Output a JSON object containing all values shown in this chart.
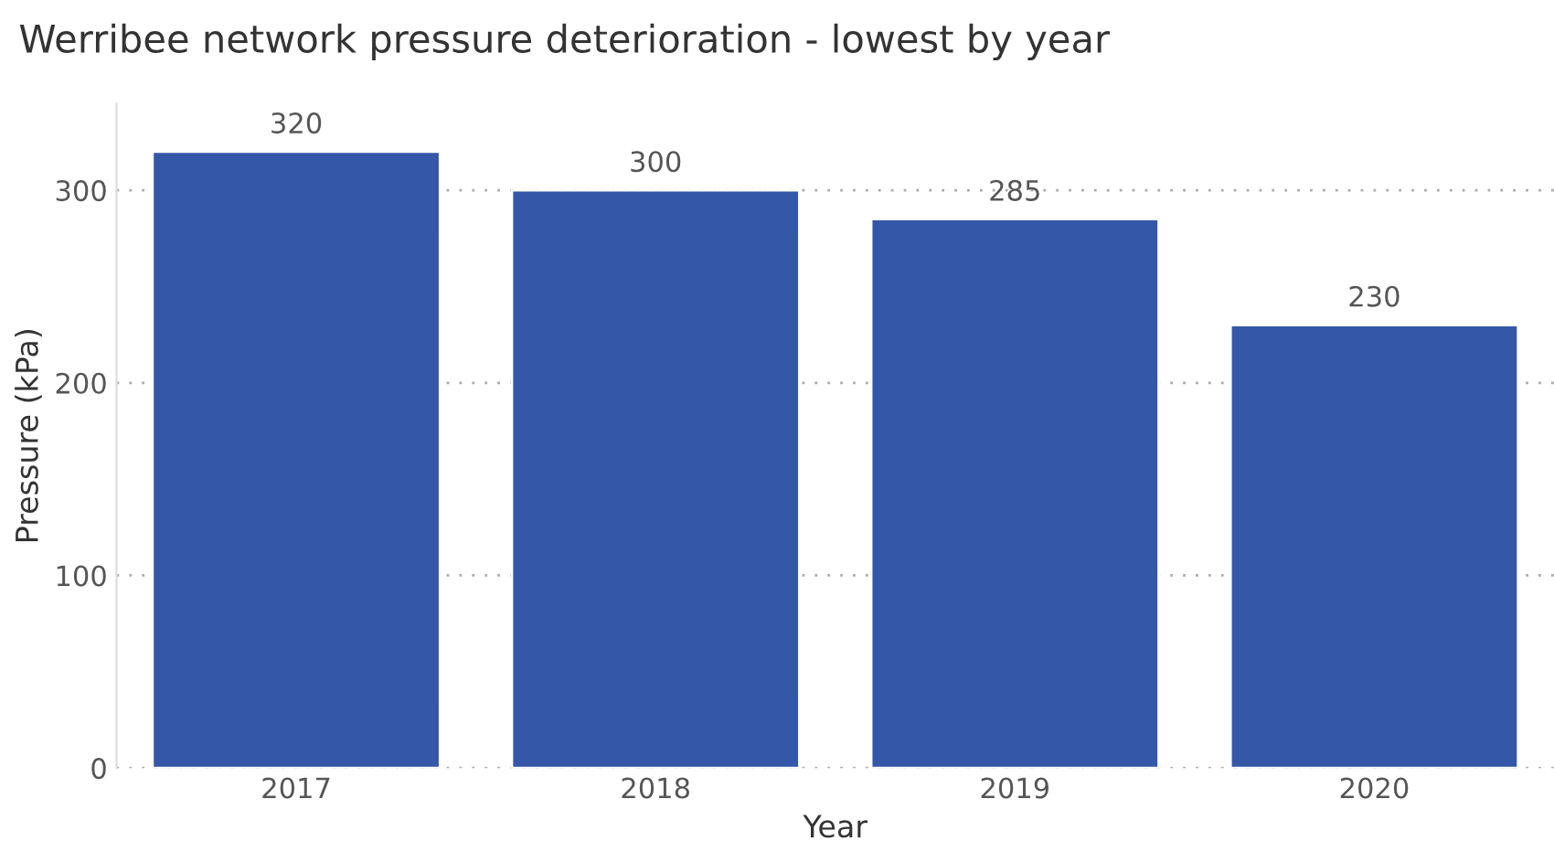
{
  "chart_data": {
    "type": "bar",
    "title": "Werribee network pressure deterioration - lowest by year",
    "xlabel": "Year",
    "ylabel": "Pressure (kPa)",
    "categories": [
      "2017",
      "2018",
      "2019",
      "2020"
    ],
    "values": [
      320,
      300,
      285,
      230
    ],
    "color": "#3457a8",
    "ylim": [
      0,
      345
    ],
    "yticks": [
      0,
      100,
      200,
      300
    ],
    "grid": "y",
    "data_labels": true
  }
}
